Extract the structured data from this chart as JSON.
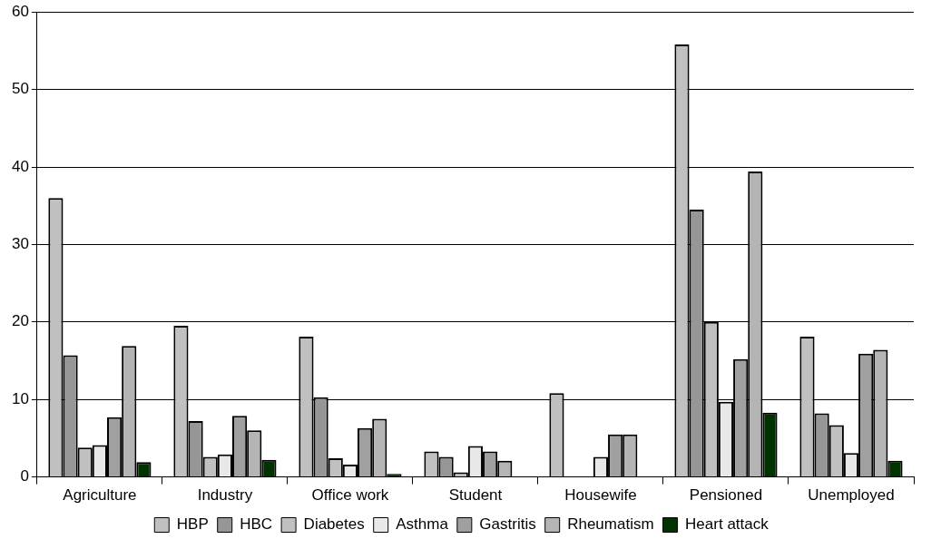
{
  "chart_data": {
    "type": "bar",
    "categories": [
      "Agriculture",
      "Industry",
      "Office work",
      "Student",
      "Housewife",
      "Pensioned",
      "Unemployed"
    ],
    "series": [
      {
        "name": "HBP",
        "color": "#c0c0c0",
        "values": [
          36,
          19.5,
          18.1,
          3.3,
          10.8,
          55.8,
          18.1
        ]
      },
      {
        "name": "HBC",
        "color": "#969696",
        "values": [
          15.7,
          7.2,
          10.3,
          2.6,
          null,
          34.5,
          8.2
        ]
      },
      {
        "name": "Diabetes",
        "color": "#c0c0c0",
        "values": [
          3.8,
          2.6,
          2.4,
          0.6,
          null,
          20,
          6.7
        ]
      },
      {
        "name": "Asthma",
        "color": "#e8e8e8",
        "values": [
          4.1,
          2.9,
          1.6,
          4,
          2.6,
          9.7,
          3.1
        ]
      },
      {
        "name": "Gastritis",
        "color": "#a0a0a0",
        "values": [
          7.7,
          7.9,
          6.3,
          3.3,
          5.5,
          15.2,
          15.9
        ]
      },
      {
        "name": "Rheumatism",
        "color": "#b4b4b4",
        "values": [
          16.9,
          6,
          7.5,
          2.1,
          5.5,
          39.4,
          16.4
        ]
      },
      {
        "name": "Heart attack",
        "color": "#003300",
        "values": [
          1.9,
          2.2,
          0.4,
          null,
          null,
          8.3,
          2.1
        ]
      }
    ],
    "ylim": [
      0,
      60
    ],
    "yticks": [
      0,
      10,
      20,
      30,
      40,
      50,
      60
    ],
    "grid": "y",
    "legend": "bottom"
  }
}
